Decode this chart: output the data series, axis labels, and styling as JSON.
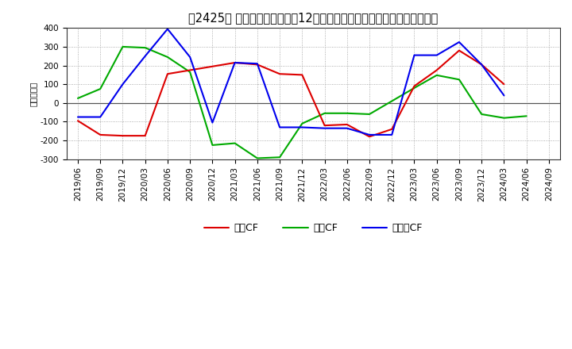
{
  "title": "　2425　 キャッシュフローの12か月移動合計の対前年同期増減額の推移",
  "title_bracket": "　2425　",
  "ylabel": "（百万円）",
  "xlabels": [
    "2019/06",
    "2019/09",
    "2019/12",
    "2020/03",
    "2020/06",
    "2020/09",
    "2020/12",
    "2021/03",
    "2021/06",
    "2021/09",
    "2021/12",
    "2022/03",
    "2022/06",
    "2022/09",
    "2022/12",
    "2023/03",
    "2023/06",
    "2023/09",
    "2023/12",
    "2024/03",
    "2024/06",
    "2024/09"
  ],
  "series": {
    "営業CF": {
      "color": "#dd0000",
      "values": [
        -95,
        -170,
        -175,
        -175,
        155,
        175,
        195,
        215,
        205,
        155,
        150,
        -120,
        -115,
        -180,
        -140,
        90,
        175,
        280,
        205,
        100,
        null,
        null
      ]
    },
    "投資CF": {
      "color": "#00aa00",
      "values": [
        25,
        75,
        300,
        295,
        245,
        165,
        -225,
        -215,
        -295,
        -290,
        -110,
        -55,
        -55,
        -60,
        10,
        80,
        148,
        125,
        -60,
        -80,
        -70,
        null
      ]
    },
    "フリーCF": {
      "color": "#0000ee",
      "values": [
        -75,
        -75,
        100,
        250,
        395,
        245,
        -105,
        215,
        210,
        -130,
        -130,
        -135,
        -135,
        -170,
        -170,
        255,
        255,
        325,
        205,
        40,
        null,
        null
      ]
    }
  },
  "ylim": [
    -300,
    400
  ],
  "yticks": [
    -300,
    -200,
    -100,
    0,
    100,
    200,
    300,
    400
  ],
  "background_color": "#ffffff",
  "grid_color": "#999999",
  "title_fontsize": 10.5,
  "axis_fontsize": 7.5,
  "legend_fontsize": 9
}
